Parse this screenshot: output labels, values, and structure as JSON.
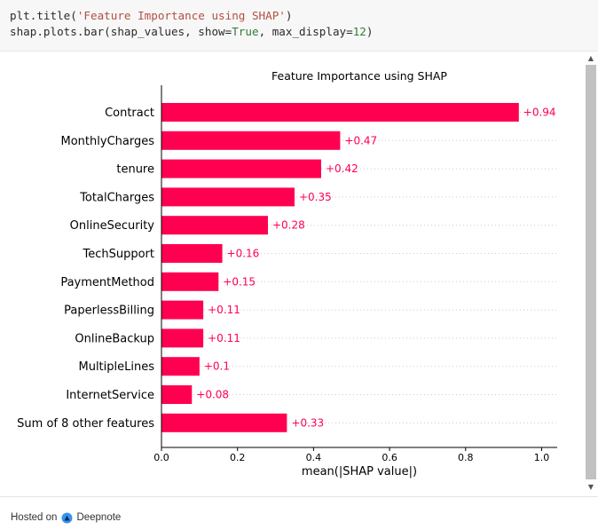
{
  "code": {
    "line1": {
      "fn": "plt.title(",
      "arg": "'Feature Importance using SHAP'",
      "end": ")"
    },
    "line2": {
      "fn": "shap.plots.bar(shap_values, show=",
      "kw": "True",
      "mid": ", max_display=",
      "num": "12",
      "end": ")"
    }
  },
  "footer": {
    "hosted_on": "Hosted on",
    "brand": "Deepnote"
  },
  "colors": {
    "bar": "#ff0051",
    "label": "#ff0051",
    "axis": "#000000",
    "grid": "#cccccc"
  },
  "chart_data": {
    "type": "bar",
    "orientation": "horizontal",
    "title": "Feature Importance using SHAP",
    "xlabel": "mean(|SHAP value|)",
    "xlim": [
      0,
      1.05
    ],
    "xticks": [
      "0.0",
      "0.2",
      "0.4",
      "0.6",
      "0.8",
      "1.0"
    ],
    "categories": [
      "Contract",
      "MonthlyCharges",
      "tenure",
      "TotalCharges",
      "OnlineSecurity",
      "TechSupport",
      "PaymentMethod",
      "PaperlessBilling",
      "OnlineBackup",
      "MultipleLines",
      "InternetService",
      "Sum of 8 other features"
    ],
    "values": [
      0.94,
      0.47,
      0.42,
      0.35,
      0.28,
      0.16,
      0.15,
      0.11,
      0.11,
      0.1,
      0.08,
      0.33
    ],
    "value_labels": [
      "+0.94",
      "+0.47",
      "+0.42",
      "+0.35",
      "+0.28",
      "+0.16",
      "+0.15",
      "+0.11",
      "+0.11",
      "+0.1",
      "+0.08",
      "+0.33"
    ],
    "grid": "horizontal dotted row guides"
  }
}
